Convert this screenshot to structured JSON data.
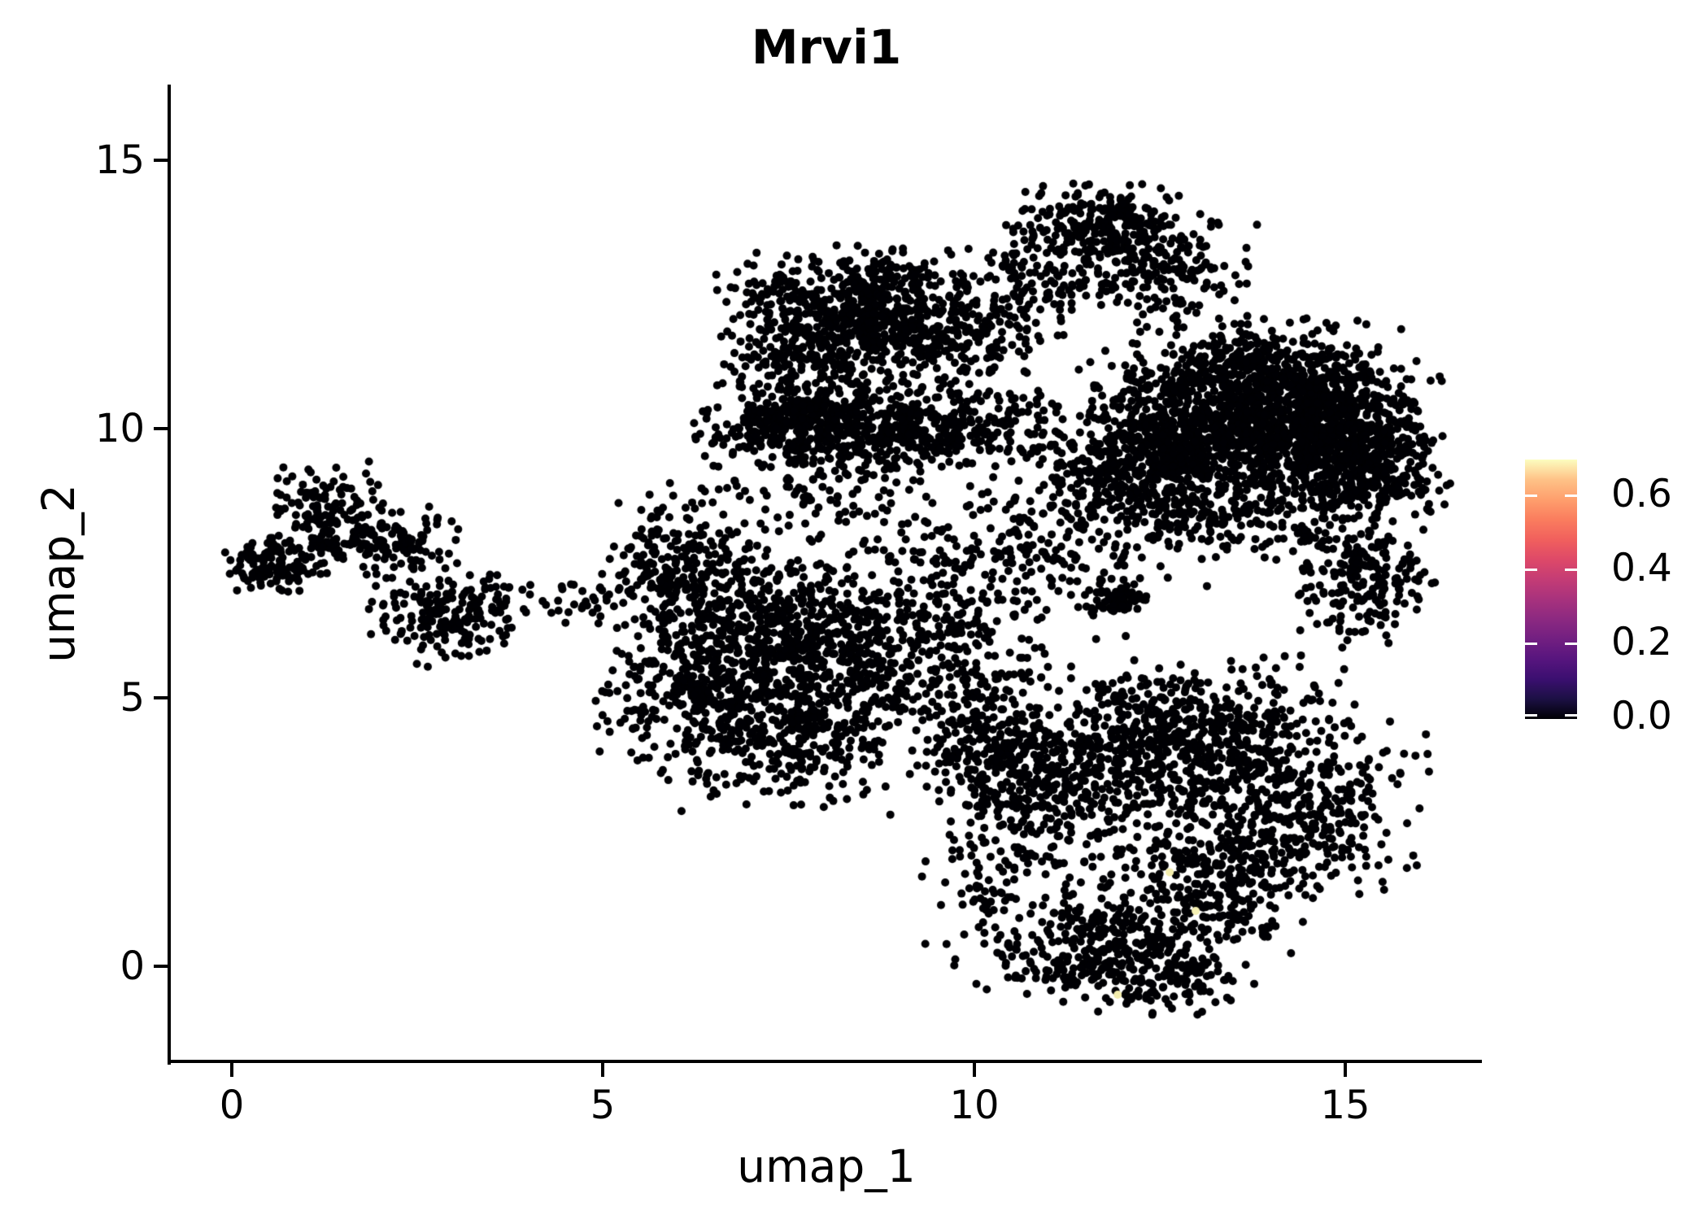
{
  "chart_data": {
    "type": "scatter",
    "title": "Mrvi1",
    "xlabel": "umap_1",
    "ylabel": "umap_2",
    "x_ticks": [
      0,
      5,
      10,
      15
    ],
    "y_ticks": [
      15,
      10,
      5,
      0
    ],
    "x_tick_labels": [
      "0",
      "5",
      "10",
      "15"
    ],
    "y_tick_labels": [
      "15",
      "10",
      "5",
      "0"
    ],
    "x_range": [
      -0.9,
      16.8
    ],
    "y_range": [
      -1.8,
      16.4
    ],
    "grid": false,
    "point_color": "#000004",
    "point_radius_px": 5,
    "seed": 12,
    "n_points_total": 10448,
    "clusters": [
      {
        "cx": 0.55,
        "cy": 7.45,
        "sx": 0.28,
        "sy": 0.22,
        "n": 120
      },
      {
        "cx": 1.25,
        "cy": 8.35,
        "sx": 0.38,
        "sy": 0.45,
        "n": 140
      },
      {
        "cx": 2.05,
        "cy": 7.9,
        "sx": 0.45,
        "sy": 0.32,
        "n": 130
      },
      {
        "cx": 2.9,
        "cy": 6.55,
        "sx": 0.45,
        "sy": 0.42,
        "n": 180
      },
      {
        "cx": 3.9,
        "cy": 6.9,
        "sx": 0.42,
        "sy": 0.28,
        "n": 28
      },
      {
        "cx": 4.9,
        "cy": 6.85,
        "sx": 0.25,
        "sy": 0.2,
        "n": 20
      },
      {
        "cx": 6.1,
        "cy": 7.4,
        "sx": 0.5,
        "sy": 0.62,
        "n": 260
      },
      {
        "cx": 7.3,
        "cy": 6.2,
        "sx": 0.8,
        "sy": 0.8,
        "n": 520
      },
      {
        "cx": 6.3,
        "cy": 5.0,
        "sx": 0.6,
        "sy": 0.7,
        "n": 300
      },
      {
        "cx": 7.6,
        "cy": 4.2,
        "sx": 0.7,
        "sy": 0.6,
        "n": 260
      },
      {
        "cx": 8.6,
        "cy": 5.7,
        "sx": 0.7,
        "sy": 0.9,
        "n": 260
      },
      {
        "cx": 9.6,
        "cy": 6.5,
        "sx": 0.6,
        "sy": 0.8,
        "n": 130
      },
      {
        "cx": 10.8,
        "cy": 7.7,
        "sx": 1.0,
        "sy": 0.65,
        "n": 240
      },
      {
        "cx": 11.9,
        "cy": 6.8,
        "sx": 0.18,
        "sy": 0.13,
        "n": 60
      },
      {
        "cx": 8.0,
        "cy": 9.0,
        "sx": 1.0,
        "sy": 0.5,
        "n": 130
      },
      {
        "cx": 10.3,
        "cy": 5.6,
        "sx": 0.8,
        "sy": 0.6,
        "n": 60
      },
      {
        "cx": 8.6,
        "cy": 12.5,
        "sx": 0.55,
        "sy": 0.45,
        "n": 290
      },
      {
        "cx": 7.9,
        "cy": 11.4,
        "sx": 0.6,
        "sy": 0.55,
        "n": 300
      },
      {
        "cx": 9.35,
        "cy": 11.7,
        "sx": 0.55,
        "sy": 0.6,
        "n": 260
      },
      {
        "cx": 7.35,
        "cy": 12.5,
        "sx": 0.38,
        "sy": 0.4,
        "n": 80
      },
      {
        "cx": 8.8,
        "cy": 10.0,
        "sx": 1.1,
        "sy": 0.38,
        "n": 600
      },
      {
        "cx": 7.45,
        "cy": 10.15,
        "sx": 0.35,
        "sy": 0.32,
        "n": 150
      },
      {
        "cx": 11.65,
        "cy": 13.8,
        "sx": 0.5,
        "sy": 0.35,
        "n": 200
      },
      {
        "cx": 12.4,
        "cy": 13.0,
        "sx": 0.6,
        "sy": 0.5,
        "n": 230
      },
      {
        "cx": 10.8,
        "cy": 12.9,
        "sx": 0.42,
        "sy": 0.42,
        "n": 90
      },
      {
        "cx": 10.45,
        "cy": 11.8,
        "sx": 0.5,
        "sy": 0.55,
        "n": 80
      },
      {
        "cx": 13.3,
        "cy": 10.2,
        "sx": 0.9,
        "sy": 0.6,
        "n": 800
      },
      {
        "cx": 14.8,
        "cy": 9.9,
        "sx": 0.65,
        "sy": 0.6,
        "n": 800
      },
      {
        "cx": 12.35,
        "cy": 9.35,
        "sx": 0.8,
        "sy": 0.5,
        "n": 450
      },
      {
        "cx": 13.9,
        "cy": 11.2,
        "sx": 0.85,
        "sy": 0.42,
        "n": 350
      },
      {
        "cx": 15.3,
        "cy": 9.0,
        "sx": 0.5,
        "sy": 0.35,
        "n": 150
      },
      {
        "cx": 15.15,
        "cy": 7.3,
        "sx": 0.45,
        "sy": 0.6,
        "n": 220
      },
      {
        "cx": 13.4,
        "cy": 8.4,
        "sx": 0.9,
        "sy": 0.4,
        "n": 200
      },
      {
        "cx": 9.95,
        "cy": 4.3,
        "sx": 0.38,
        "sy": 0.55,
        "n": 130
      },
      {
        "cx": 10.6,
        "cy": 3.6,
        "sx": 0.5,
        "sy": 0.8,
        "n": 250
      },
      {
        "cx": 12.0,
        "cy": 3.9,
        "sx": 0.7,
        "sy": 0.7,
        "n": 350
      },
      {
        "cx": 13.3,
        "cy": 4.4,
        "sx": 0.8,
        "sy": 0.6,
        "n": 350
      },
      {
        "cx": 14.3,
        "cy": 2.9,
        "sx": 0.8,
        "sy": 0.8,
        "n": 420
      },
      {
        "cx": 13.1,
        "cy": 1.5,
        "sx": 0.7,
        "sy": 0.65,
        "n": 300
      },
      {
        "cx": 11.6,
        "cy": 0.4,
        "sx": 0.6,
        "sy": 0.55,
        "n": 250
      },
      {
        "cx": 12.5,
        "cy": -0.15,
        "sx": 0.55,
        "sy": 0.4,
        "n": 150
      },
      {
        "cx": 10.3,
        "cy": 1.5,
        "sx": 0.45,
        "sy": 0.9,
        "n": 120
      },
      {
        "cx": 11.5,
        "cy": 2.3,
        "sx": 0.5,
        "sy": 0.6,
        "n": 40
      }
    ],
    "highlight_points": [
      {
        "x": 12.63,
        "y": 1.75,
        "value": 0.66,
        "color": "#f3edad"
      },
      {
        "x": 12.98,
        "y": 1.03,
        "value": 0.68,
        "color": "#f5f0b3"
      },
      {
        "x": 11.93,
        "y": -0.53,
        "value": 0.64,
        "color": "#f2ecac"
      }
    ],
    "colorbar": {
      "colormap": "magma",
      "ticks": [
        0.6,
        0.4,
        0.2,
        0.0
      ],
      "tick_labels": [
        "0.6",
        "0.4",
        "0.2",
        "0.0"
      ],
      "vmin": 0.0,
      "vmax": 0.7,
      "gradient_stops_bottom_to_top": [
        "#000004",
        "#1c1044",
        "#3b0f70",
        "#57157e",
        "#721f81",
        "#8c2981",
        "#a8327d",
        "#c43c75",
        "#de4968",
        "#f1605d",
        "#fa7d5e",
        "#fe9f6d",
        "#fec287",
        "#fcfdbf"
      ]
    }
  }
}
